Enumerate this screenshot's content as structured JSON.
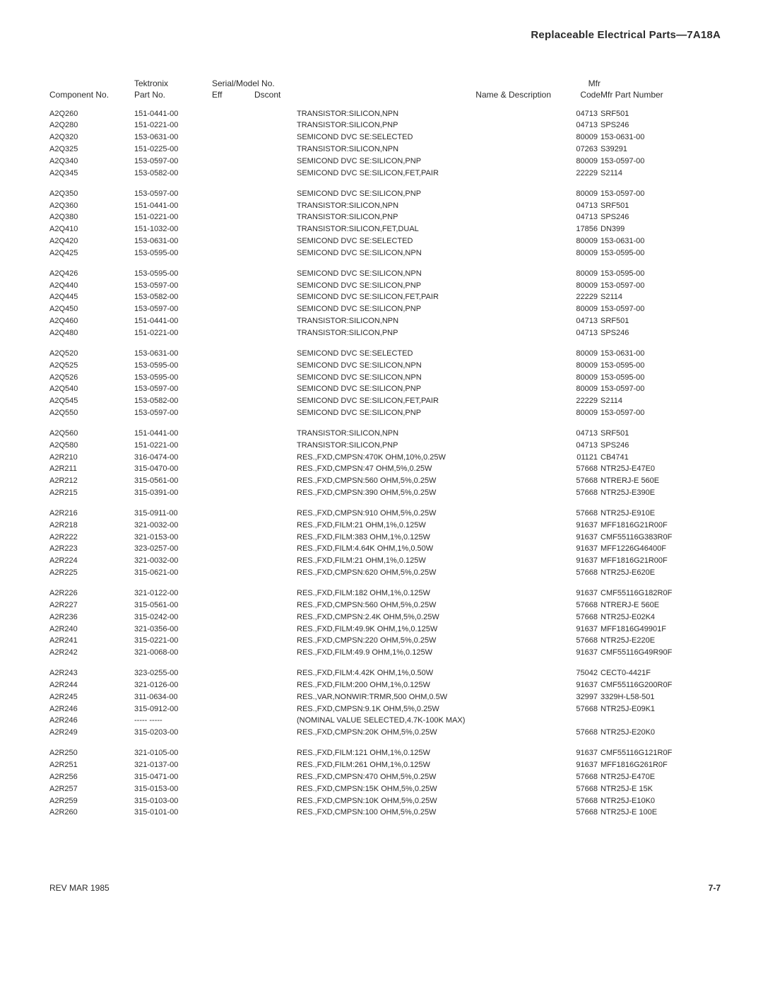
{
  "header_title": "Replaceable Electrical Parts—7A18A",
  "columns": {
    "component_no": "Component No.",
    "tektronix": "Tektronix",
    "part_no": "Part No.",
    "serial_model_no": "Serial/Model No.",
    "eff": "Eff",
    "dscont": "Dscont",
    "name_desc": "Name & Description",
    "mfr": "Mfr",
    "code": "Code",
    "mfr_part_number": "Mfr Part Number"
  },
  "groups": [
    [
      {
        "comp": "A2Q260",
        "tek": "151-0441-00",
        "name": "TRANSISTOR:SILICON,NPN",
        "code": "04713",
        "mfrpn": "SRF501"
      },
      {
        "comp": "A2Q280",
        "tek": "151-0221-00",
        "name": "TRANSISTOR:SILICON,PNP",
        "code": "04713",
        "mfrpn": "SPS246"
      },
      {
        "comp": "A2Q320",
        "tek": "153-0631-00",
        "name": "SEMICOND DVC SE:SELECTED",
        "code": "80009",
        "mfrpn": "153-0631-00"
      },
      {
        "comp": "A2Q325",
        "tek": "151-0225-00",
        "name": "TRANSISTOR:SILICON,NPN",
        "code": "07263",
        "mfrpn": "S39291"
      },
      {
        "comp": "A2Q340",
        "tek": "153-0597-00",
        "name": "SEMICOND DVC SE:SILICON,PNP",
        "code": "80009",
        "mfrpn": "153-0597-00"
      },
      {
        "comp": "A2Q345",
        "tek": "153-0582-00",
        "name": "SEMICOND DVC SE:SILICON,FET,PAIR",
        "code": "22229",
        "mfrpn": "S2114"
      }
    ],
    [
      {
        "comp": "A2Q350",
        "tek": "153-0597-00",
        "name": "SEMICOND DVC SE:SILICON,PNP",
        "code": "80009",
        "mfrpn": "153-0597-00"
      },
      {
        "comp": "A2Q360",
        "tek": "151-0441-00",
        "name": "TRANSISTOR:SILICON,NPN",
        "code": "04713",
        "mfrpn": "SRF501"
      },
      {
        "comp": "A2Q380",
        "tek": "151-0221-00",
        "name": "TRANSISTOR:SILICON,PNP",
        "code": "04713",
        "mfrpn": "SPS246"
      },
      {
        "comp": "A2Q410",
        "tek": "151-1032-00",
        "name": "TRANSISTOR:SILICON,FET,DUAL",
        "code": "17856",
        "mfrpn": "DN399"
      },
      {
        "comp": "A2Q420",
        "tek": "153-0631-00",
        "name": "SEMICOND DVC SE:SELECTED",
        "code": "80009",
        "mfrpn": "153-0631-00"
      },
      {
        "comp": "A2Q425",
        "tek": "153-0595-00",
        "name": "SEMICOND DVC SE:SILICON,NPN",
        "code": "80009",
        "mfrpn": "153-0595-00"
      }
    ],
    [
      {
        "comp": "A2Q426",
        "tek": "153-0595-00",
        "name": "SEMICOND DVC SE:SILICON,NPN",
        "code": "80009",
        "mfrpn": "153-0595-00"
      },
      {
        "comp": "A2Q440",
        "tek": "153-0597-00",
        "name": "SEMICOND DVC SE:SILICON,PNP",
        "code": "80009",
        "mfrpn": "153-0597-00"
      },
      {
        "comp": "A2Q445",
        "tek": "153-0582-00",
        "name": "SEMICOND DVC SE:SILICON,FET,PAIR",
        "code": "22229",
        "mfrpn": "S2114"
      },
      {
        "comp": "A2Q450",
        "tek": "153-0597-00",
        "name": "SEMICOND DVC SE:SILICON,PNP",
        "code": "80009",
        "mfrpn": "153-0597-00"
      },
      {
        "comp": "A2Q460",
        "tek": "151-0441-00",
        "name": "TRANSISTOR:SILICON,NPN",
        "code": "04713",
        "mfrpn": "SRF501"
      },
      {
        "comp": "A2Q480",
        "tek": "151-0221-00",
        "name": "TRANSISTOR:SILICON,PNP",
        "code": "04713",
        "mfrpn": "SPS246"
      }
    ],
    [
      {
        "comp": "A2Q520",
        "tek": "153-0631-00",
        "name": "SEMICOND DVC SE:SELECTED",
        "code": "80009",
        "mfrpn": "153-0631-00"
      },
      {
        "comp": "A2Q525",
        "tek": "153-0595-00",
        "name": "SEMICOND DVC SE:SILICON,NPN",
        "code": "80009",
        "mfrpn": "153-0595-00"
      },
      {
        "comp": "A2Q526",
        "tek": "153-0595-00",
        "name": "SEMICOND DVC SE:SILICON,NPN",
        "code": "80009",
        "mfrpn": "153-0595-00"
      },
      {
        "comp": "A2Q540",
        "tek": "153-0597-00",
        "name": "SEMICOND DVC SE:SILICON,PNP",
        "code": "80009",
        "mfrpn": "153-0597-00"
      },
      {
        "comp": "A2Q545",
        "tek": "153-0582-00",
        "name": "SEMICOND DVC SE:SILICON,FET,PAIR",
        "code": "22229",
        "mfrpn": "S2114"
      },
      {
        "comp": "A2Q550",
        "tek": "153-0597-00",
        "name": "SEMICOND DVC SE:SILICON,PNP",
        "code": "80009",
        "mfrpn": "153-0597-00"
      }
    ],
    [
      {
        "comp": "A2Q560",
        "tek": "151-0441-00",
        "name": "TRANSISTOR:SILICON,NPN",
        "code": "04713",
        "mfrpn": "SRF501"
      },
      {
        "comp": "A2Q580",
        "tek": "151-0221-00",
        "name": "TRANSISTOR:SILICON,PNP",
        "code": "04713",
        "mfrpn": "SPS246"
      },
      {
        "comp": "A2R210",
        "tek": "316-0474-00",
        "name": "RES.,FXD,CMPSN:470K OHM,10%,0.25W",
        "code": "01121",
        "mfrpn": "CB4741"
      },
      {
        "comp": "A2R211",
        "tek": "315-0470-00",
        "name": "RES.,FXD,CMPSN:47 OHM,5%,0.25W",
        "code": "57668",
        "mfrpn": "NTR25J-E47E0"
      },
      {
        "comp": "A2R212",
        "tek": "315-0561-00",
        "name": "RES.,FXD,CMPSN:560 OHM,5%,0.25W",
        "code": "57668",
        "mfrpn": "NTRERJ-E 560E"
      },
      {
        "comp": "A2R215",
        "tek": "315-0391-00",
        "name": "RES.,FXD,CMPSN:390 OHM,5%,0.25W",
        "code": "57668",
        "mfrpn": "NTR25J-E390E"
      }
    ],
    [
      {
        "comp": "A2R216",
        "tek": "315-0911-00",
        "name": "RES.,FXD,CMPSN:910 OHM,5%,0.25W",
        "code": "57668",
        "mfrpn": "NTR25J-E910E"
      },
      {
        "comp": "A2R218",
        "tek": "321-0032-00",
        "name": "RES.,FXD,FILM:21 OHM,1%,0.125W",
        "code": "91637",
        "mfrpn": "MFF1816G21R00F"
      },
      {
        "comp": "A2R222",
        "tek": "321-0153-00",
        "name": "RES.,FXD,FILM:383 OHM,1%,0.125W",
        "code": "91637",
        "mfrpn": "CMF55116G383R0F"
      },
      {
        "comp": "A2R223",
        "tek": "323-0257-00",
        "name": "RES.,FXD,FILM:4.64K OHM,1%,0.50W",
        "code": "91637",
        "mfrpn": "MFF1226G46400F"
      },
      {
        "comp": "A2R224",
        "tek": "321-0032-00",
        "name": "RES.,FXD,FILM:21 OHM,1%,0.125W",
        "code": "91637",
        "mfrpn": "MFF1816G21R00F"
      },
      {
        "comp": "A2R225",
        "tek": "315-0621-00",
        "name": "RES.,FXD,CMPSN:620 OHM,5%,0.25W",
        "code": "57668",
        "mfrpn": "NTR25J-E620E"
      }
    ],
    [
      {
        "comp": "A2R226",
        "tek": "321-0122-00",
        "name": "RES.,FXD,FILM:182 OHM,1%,0.125W",
        "code": "91637",
        "mfrpn": "CMF55116G182R0F"
      },
      {
        "comp": "A2R227",
        "tek": "315-0561-00",
        "name": "RES.,FXD,CMPSN:560 OHM,5%,0.25W",
        "code": "57668",
        "mfrpn": "NTRERJ-E 560E"
      },
      {
        "comp": "A2R236",
        "tek": "315-0242-00",
        "name": "RES.,FXD,CMPSN:2.4K OHM,5%,0.25W",
        "code": "57668",
        "mfrpn": "NTR25J-E02K4"
      },
      {
        "comp": "A2R240",
        "tek": "321-0356-00",
        "name": "RES.,FXD,FILM:49.9K OHM,1%,0.125W",
        "code": "91637",
        "mfrpn": "MFF1816G49901F"
      },
      {
        "comp": "A2R241",
        "tek": "315-0221-00",
        "name": "RES.,FXD,CMPSN:220 OHM,5%,0.25W",
        "code": "57668",
        "mfrpn": "NTR25J-E220E"
      },
      {
        "comp": "A2R242",
        "tek": "321-0068-00",
        "name": "RES.,FXD,FILM:49.9 OHM,1%,0.125W",
        "code": "91637",
        "mfrpn": "CMF55116G49R90F"
      }
    ],
    [
      {
        "comp": "A2R243",
        "tek": "323-0255-00",
        "name": "RES.,FXD,FILM:4.42K OHM,1%,0.50W",
        "code": "75042",
        "mfrpn": "CECT0-4421F"
      },
      {
        "comp": "A2R244",
        "tek": "321-0126-00",
        "name": "RES.,FXD,FILM:200 OHM,1%,0.125W",
        "code": "91637",
        "mfrpn": "CMF55116G200R0F"
      },
      {
        "comp": "A2R245",
        "tek": "311-0634-00",
        "name": "RES.,VAR,NONWIR:TRMR,500 OHM,0.5W",
        "code": "32997",
        "mfrpn": "3329H-L58-501"
      },
      {
        "comp": "A2R246",
        "tek": "315-0912-00",
        "name": "RES.,FXD,CMPSN:9.1K OHM,5%,0.25W",
        "code": "57668",
        "mfrpn": "NTR25J-E09K1"
      },
      {
        "comp": "A2R246",
        "tek": "----- -----",
        "name": "(NOMINAL VALUE SELECTED,4.7K-100K MAX)",
        "code": "",
        "mfrpn": ""
      },
      {
        "comp": "A2R249",
        "tek": "315-0203-00",
        "name": "RES.,FXD,CMPSN:20K OHM,5%,0.25W",
        "code": "57668",
        "mfrpn": "NTR25J-E20K0"
      }
    ],
    [
      {
        "comp": "A2R250",
        "tek": "321-0105-00",
        "name": "RES.,FXD,FILM:121 OHM,1%,0.125W",
        "code": "91637",
        "mfrpn": "CMF55116G121R0F"
      },
      {
        "comp": "A2R251",
        "tek": "321-0137-00",
        "name": "RES.,FXD,FILM:261 OHM,1%,0.125W",
        "code": "91637",
        "mfrpn": "MFF1816G261R0F"
      },
      {
        "comp": "A2R256",
        "tek": "315-0471-00",
        "name": "RES.,FXD,CMPSN:470 OHM,5%,0.25W",
        "code": "57668",
        "mfrpn": "NTR25J-E470E"
      },
      {
        "comp": "A2R257",
        "tek": "315-0153-00",
        "name": "RES.,FXD,CMPSN:15K OHM,5%,0.25W",
        "code": "57668",
        "mfrpn": "NTR25J-E 15K"
      },
      {
        "comp": "A2R259",
        "tek": "315-0103-00",
        "name": "RES.,FXD,CMPSN:10K OHM,5%,0.25W",
        "code": "57668",
        "mfrpn": "NTR25J-E10K0"
      },
      {
        "comp": "A2R260",
        "tek": "315-0101-00",
        "name": "RES.,FXD,CMPSN:100 OHM,5%,0.25W",
        "code": "57668",
        "mfrpn": "NTR25J-E 100E"
      }
    ]
  ],
  "footer": {
    "rev": "REV MAR 1985",
    "page": "7-7"
  }
}
